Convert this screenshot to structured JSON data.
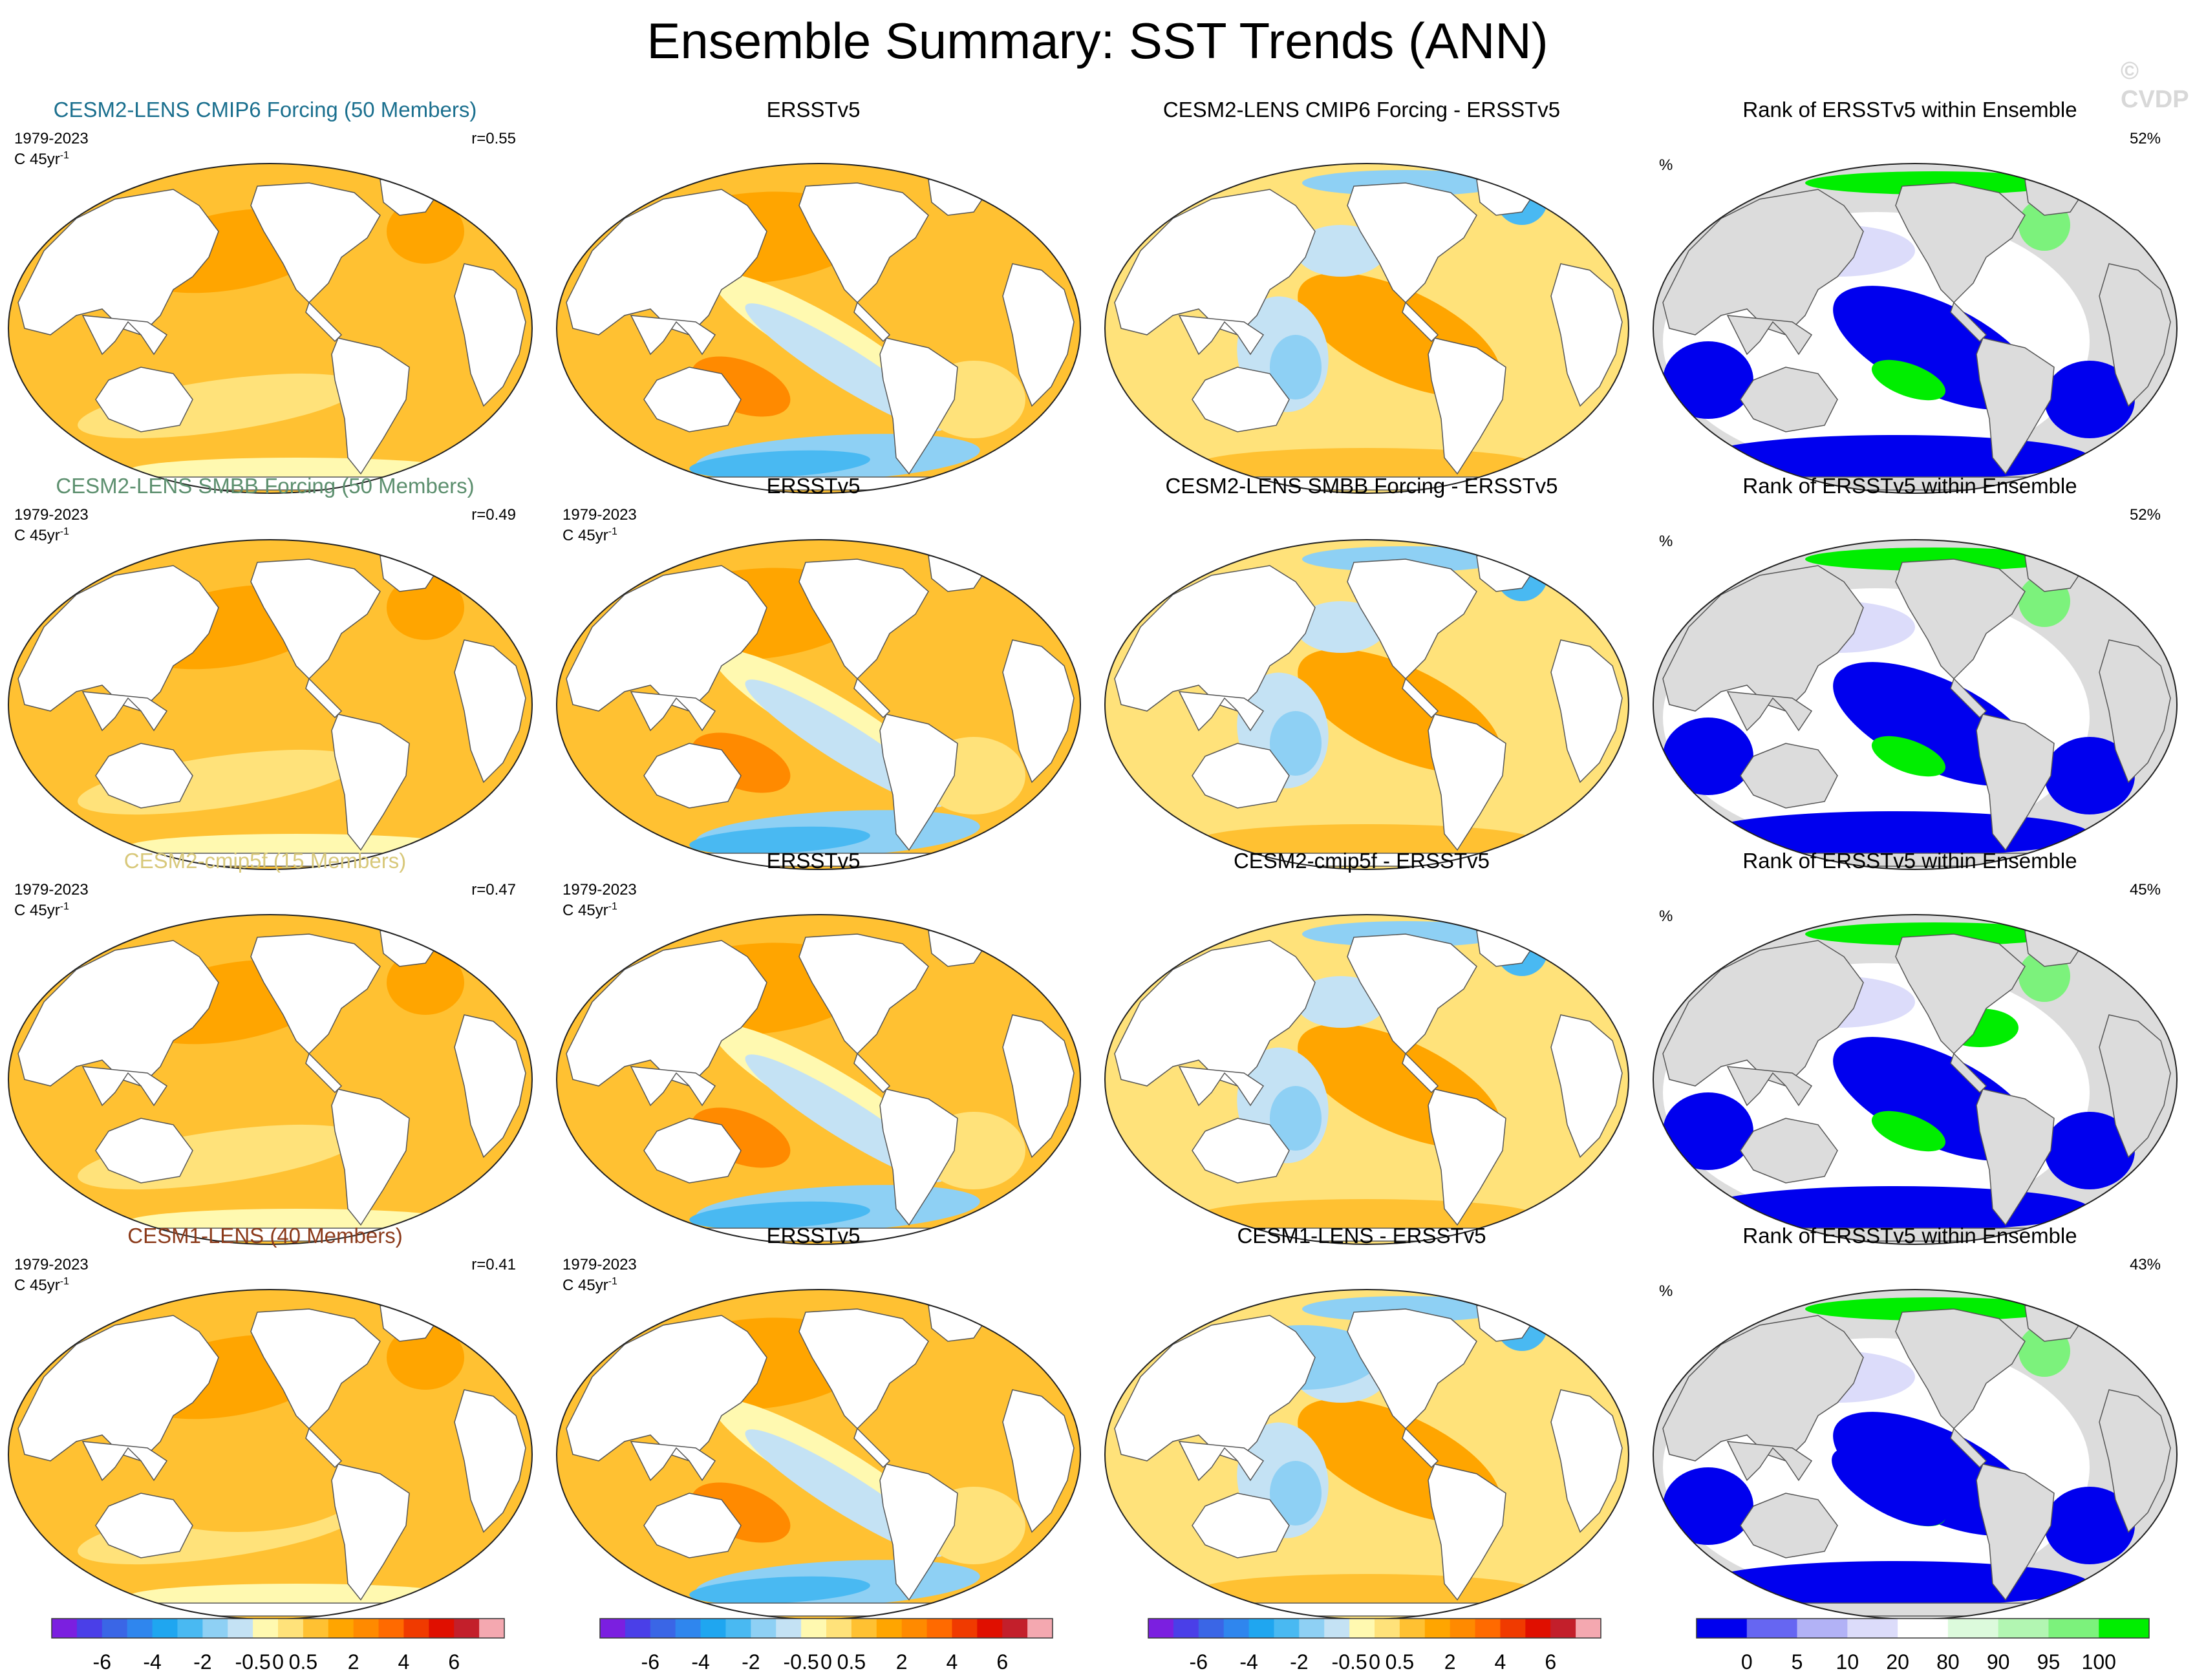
{
  "title": "Ensemble Summary: SST Trends (ANN)",
  "watermark": "© CVDP",
  "colors": {
    "trend_scale": [
      "#7b1fe0",
      "#4a3fe8",
      "#3a66e6",
      "#2f86ee",
      "#1fa6f0",
      "#49b9f2",
      "#8ed0f4",
      "#c4e2f4",
      "#fff9b0",
      "#ffe27a",
      "#ffc132",
      "#ffa500",
      "#ff8a00",
      "#ff6a00",
      "#f03a00",
      "#e00f00",
      "#c31f2b",
      "#f4a8b0"
    ],
    "rank_scale": [
      "#0000ee",
      "#6666f2",
      "#b2b2f6",
      "#dcdcfa",
      "#ffffff",
      "#dcfadc",
      "#b2f6b2",
      "#7cf27c",
      "#00ee00"
    ],
    "land": "#ffffff",
    "rank_land": "#dcdcdc"
  },
  "rows": [
    {
      "model_title": "CESM2-LENS CMIP6 Forcing (50 Members)",
      "model_title_color": "#1a6f8e",
      "period": "1979-2023",
      "units": "C 45yr",
      "units_exp": "-1",
      "r_label": "r=0.55",
      "obs_title": "ERSSTv5",
      "diff_title": "CESM2-LENS CMIP6 Forcing - ERSSTv5",
      "rank_title": "Rank of ERSSTv5 within Ensemble",
      "rank_pct": "52%",
      "rank_unit": "%",
      "obs_shows_info": false
    },
    {
      "model_title": "CESM2-LENS SMBB Forcing (50 Members)",
      "model_title_color": "#5c8f6e",
      "period": "1979-2023",
      "units": "C 45yr",
      "units_exp": "-1",
      "r_label": "r=0.49",
      "obs_title": "ERSSTv5",
      "diff_title": "CESM2-LENS SMBB Forcing - ERSSTv5",
      "rank_title": "Rank of ERSSTv5 within Ensemble",
      "rank_pct": "52%",
      "rank_unit": "%",
      "obs_shows_info": true
    },
    {
      "model_title": "CESM2-cmip5f (15 Members)",
      "model_title_color": "#d8c87a",
      "period": "1979-2023",
      "units": "C 45yr",
      "units_exp": "-1",
      "r_label": "r=0.47",
      "obs_title": "ERSSTv5",
      "diff_title": "CESM2-cmip5f - ERSSTv5",
      "rank_title": "Rank of ERSSTv5 within Ensemble",
      "rank_pct": "45%",
      "rank_unit": "%",
      "obs_shows_info": true
    },
    {
      "model_title": "CESM1-LENS (40 Members)",
      "model_title_color": "#8b3a1a",
      "period": "1979-2023",
      "units": "C 45yr",
      "units_exp": "-1",
      "r_label": "r=0.41",
      "obs_title": "ERSSTv5",
      "diff_title": "CESM1-LENS - ERSSTv5",
      "rank_title": "Rank of ERSSTv5 within Ensemble",
      "rank_pct": "43%",
      "rank_unit": "%",
      "obs_shows_info": true
    }
  ],
  "colorbars": {
    "trend_ticks": [
      "-6",
      "-4",
      "-2",
      "-0.5",
      "0",
      "0.5",
      "2",
      "4",
      "6"
    ],
    "rank_ticks": [
      "0",
      "5",
      "10",
      "20",
      "80",
      "90",
      "95",
      "100"
    ]
  }
}
